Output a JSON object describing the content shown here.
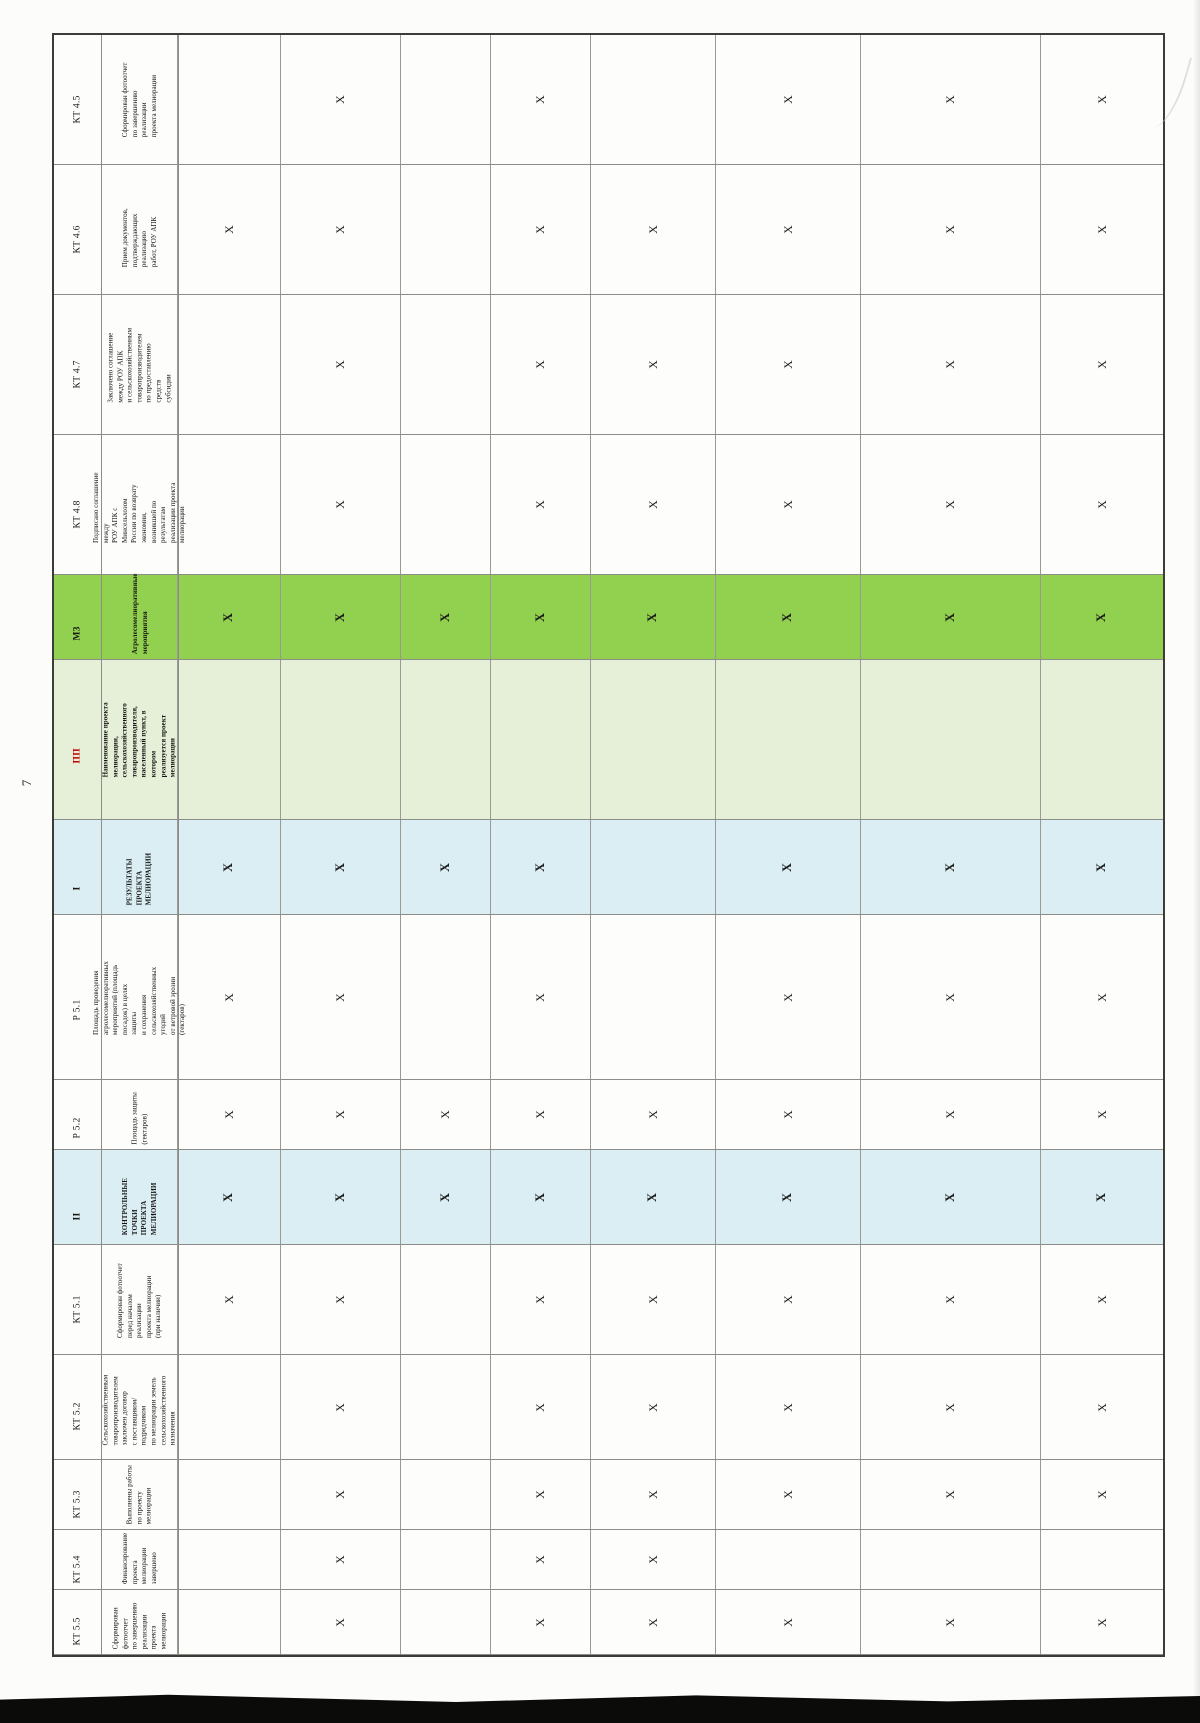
{
  "page": {
    "number": "7"
  },
  "colors": {
    "highlight_green": "#92d050",
    "pale_green": "#e6efd8",
    "pale_blue": "#daeef3",
    "code_red": "#c00000"
  },
  "table": {
    "mark_symbol": "X",
    "x_column_count": 8,
    "rows": [
      {
        "code": "КТ 4.5",
        "style": "normal",
        "lines": [
          "Сформирован фотоотчет",
          "по завершению реализации",
          "проекта мелиорации"
        ],
        "marks": [
          2,
          4,
          6,
          7,
          8
        ]
      },
      {
        "code": "КТ 4.6",
        "style": "normal",
        "lines": [
          "Прием документов,",
          "подтверждающих реализацию",
          "работ, РОУ АПК"
        ],
        "marks": [
          1,
          2,
          4,
          5,
          6,
          7,
          8
        ]
      },
      {
        "code": "КТ 4.7",
        "style": "normal",
        "lines": [
          "Заключено соглашение",
          "между РОУ АПК",
          "и сельскохозяйственным",
          "товаропроизводителем",
          "по предоставлению средств",
          "субсидии"
        ],
        "marks": [
          2,
          4,
          5,
          6,
          7,
          8
        ]
      },
      {
        "code": "КТ 4.8",
        "style": "normal",
        "lines": [
          "Подписано соглашение между",
          "РОУ АПК с Минсельхозом",
          "России по возврату экономии,",
          "возникшей по результатам",
          "реализации проекта",
          "мелиорации"
        ],
        "marks": [
          2,
          4,
          5,
          6,
          7,
          8
        ]
      },
      {
        "code": "М3",
        "style": "measure",
        "lines": [
          "Агролесомелиоративные",
          "мероприятия"
        ],
        "marks": [
          1,
          2,
          3,
          4,
          5,
          6,
          7,
          8
        ]
      },
      {
        "code": "ПП",
        "style": "project",
        "lines": [
          "Наименование проекта",
          "мелиорации,",
          "сельскохозяйственного",
          "товаропроизводителя,",
          "населенный пункт, в котором",
          "реализуется проект мелиорации"
        ],
        "marks": []
      },
      {
        "code": "I",
        "style": "section",
        "lines": [
          "РЕЗУЛЬТАТЫ ПРОЕКТА",
          "МЕЛИОРАЦИИ"
        ],
        "marks": [
          1,
          2,
          3,
          4,
          6,
          7,
          8
        ]
      },
      {
        "code": "Р 5.1",
        "style": "normal",
        "lines": [
          "Площадь проведения",
          "агролесомелиоративных",
          "мероприятий (площадь",
          "посадок) в целях защиты",
          "и сохранения",
          "сельскохозяйственных угодий",
          "от ветровой эрозии (гектаров)"
        ],
        "marks": [
          1,
          2,
          4,
          6,
          7,
          8
        ]
      },
      {
        "code": "Р 5.2",
        "style": "normal",
        "lines": [
          "Площадь защиты",
          "(гектаров)"
        ],
        "marks": [
          1,
          2,
          3,
          4,
          5,
          6,
          7,
          8
        ]
      },
      {
        "code": "II",
        "style": "section",
        "lines": [
          "КОНТРОЛЬНЫЕ ТОЧКИ",
          "ПРОЕКТА МЕЛИОРАЦИИ"
        ],
        "marks": [
          1,
          2,
          3,
          4,
          5,
          6,
          7,
          8
        ]
      },
      {
        "code": "КТ 5.1",
        "style": "normal",
        "lines": [
          "Сформирован фотоотчет",
          "перед началом реализации",
          "проекта мелиорации",
          "(при наличии)"
        ],
        "marks": [
          1,
          2,
          4,
          5,
          6,
          7,
          8
        ]
      },
      {
        "code": "КТ 5.2",
        "style": "normal",
        "lines": [
          "Сельскохозяйственным",
          "товаропроизводителем",
          "заключен договор",
          "с поставщиком/подрядчиком",
          "по мелиорации земель",
          "сельскохозяйственного",
          "назначения"
        ],
        "marks": [
          2,
          4,
          5,
          6,
          7,
          8
        ]
      },
      {
        "code": "КТ 5.3",
        "style": "normal",
        "lines": [
          "Выполнены работы",
          "по проекту",
          "мелиорации"
        ],
        "marks": [
          2,
          4,
          5,
          6,
          7,
          8
        ]
      },
      {
        "code": "КТ 5.4",
        "style": "normal",
        "lines": [
          "Финансирование",
          "проекта",
          "мелиорации",
          "завершено"
        ],
        "marks": [
          2,
          4,
          5
        ]
      },
      {
        "code": "КТ 5.5",
        "style": "normal",
        "lines": [
          "Сформирован",
          "фотоотчет",
          "по завершению",
          "реализации",
          "проекта",
          "мелиорации"
        ],
        "marks": [
          2,
          4,
          5,
          6,
          7,
          8
        ]
      }
    ]
  }
}
